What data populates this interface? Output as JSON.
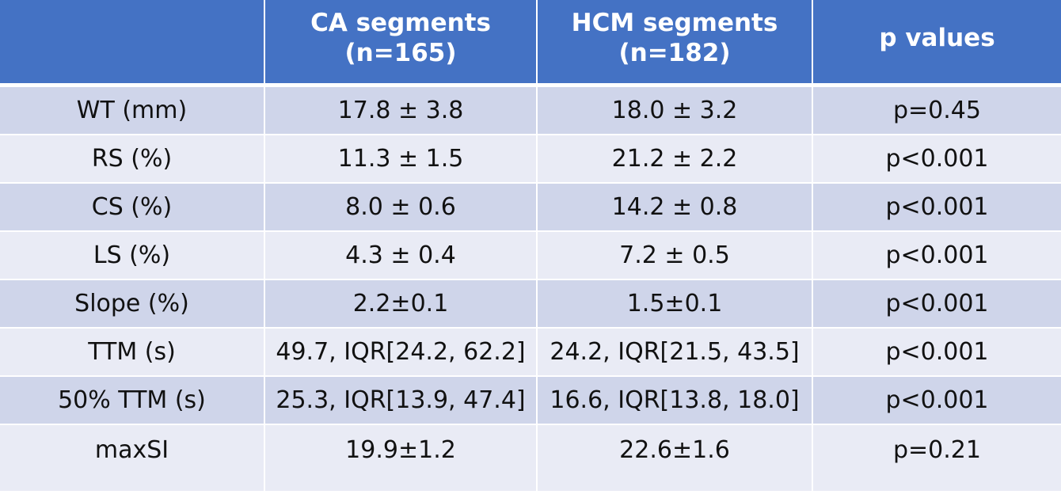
{
  "table": {
    "header": {
      "blank": "",
      "ca_line1": "CA segments",
      "ca_line2": "(n=165)",
      "hcm_line1": "HCM segments",
      "hcm_line2": "(n=182)",
      "p_label": "p values"
    },
    "rows": [
      {
        "label": "WT (mm)",
        "ca": "17.8 ± 3.8",
        "hcm": "18.0 ± 3.2",
        "p": "p=0.45"
      },
      {
        "label": "RS (%)",
        "ca": "11.3 ± 1.5",
        "hcm": "21.2 ± 2.2",
        "p": "p<0.001"
      },
      {
        "label": "CS (%)",
        "ca": "8.0 ± 0.6",
        "hcm": "14.2 ± 0.8",
        "p": "p<0.001"
      },
      {
        "label": "LS (%)",
        "ca": "4.3 ± 0.4",
        "hcm": "7.2 ± 0.5",
        "p": "p<0.001"
      },
      {
        "label": "Slope (%)",
        "ca": "2.2±0.1",
        "hcm": "1.5±0.1",
        "p": "p<0.001"
      },
      {
        "label": "TTM (s)",
        "ca": "49.7, IQR[24.2, 62.2]",
        "hcm": "24.2, IQR[21.5, 43.5]",
        "p": "p<0.001"
      },
      {
        "label": "50% TTM (s)",
        "ca": "25.3, IQR[13.9, 47.4]",
        "hcm": "16.6, IQR[13.8, 18.0]",
        "p": "p<0.001"
      },
      {
        "label": "maxSI",
        "ca": "19.9±1.2",
        "hcm": "22.6±1.6",
        "p": "p=0.21"
      }
    ],
    "colors": {
      "header_bg": "#4472c4",
      "row_dark": "#cfd5ea",
      "row_light": "#e9ebf5"
    }
  }
}
